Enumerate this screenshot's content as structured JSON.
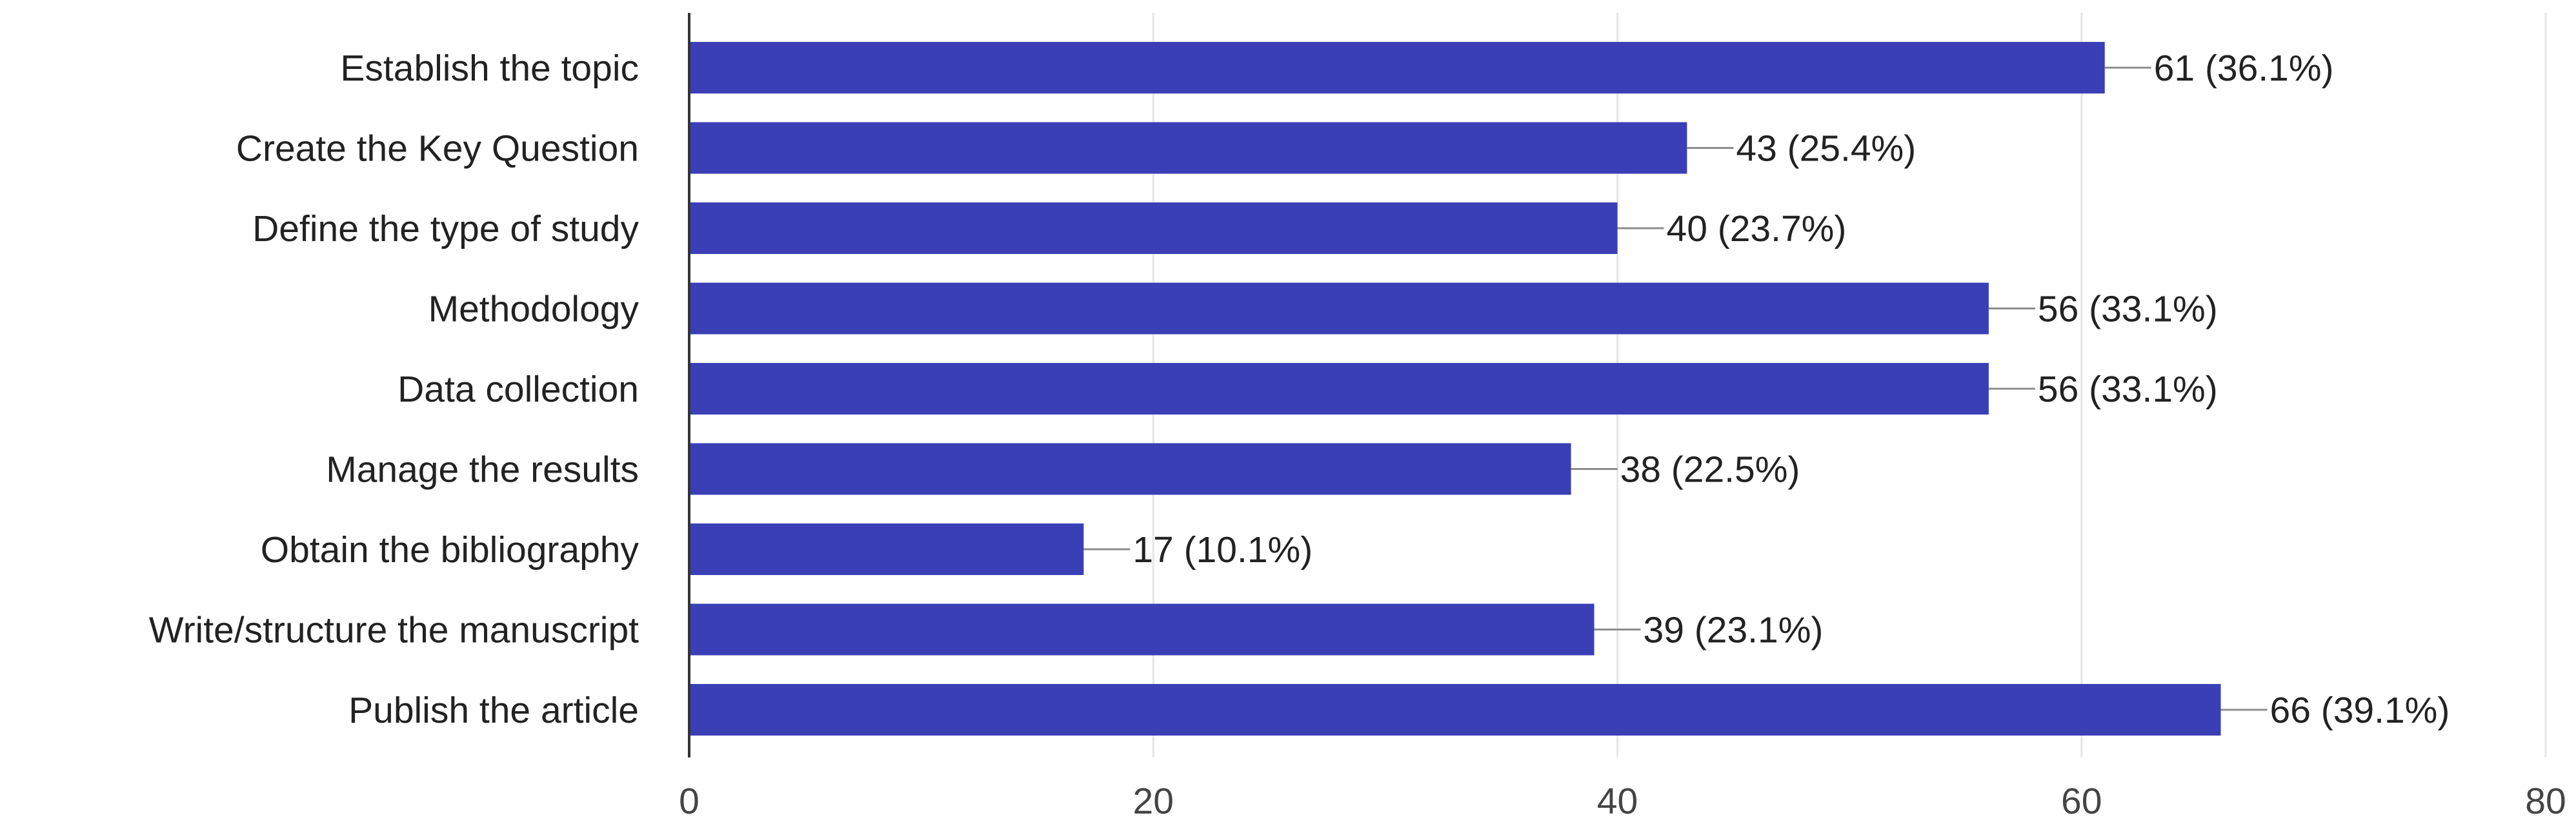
{
  "chart_data": {
    "type": "bar",
    "orientation": "horizontal",
    "categories": [
      "Establish the topic",
      "Create the Key Question",
      "Define the type of study",
      "Methodology",
      "Data collection",
      "Manage the results",
      "Obtain the bibliography",
      "Write/structure the manuscript",
      "Publish the article"
    ],
    "values": [
      61,
      43,
      40,
      56,
      56,
      38,
      17,
      39,
      66
    ],
    "data_labels": [
      "61 (36.1%)",
      "43 (25.4%)",
      "40 (23.7%)",
      "56 (33.1%)",
      "56 (33.1%)",
      "38 (22.5%)",
      "17 (10.1%)",
      "39 (23.1%)",
      "66 (39.1%)"
    ],
    "xlim": [
      0,
      80
    ],
    "xticks": [
      "0",
      "20",
      "40",
      "60",
      "80"
    ],
    "title": "",
    "xlabel": "",
    "ylabel": "",
    "grid": "vertical",
    "legend": "none",
    "bar_color": "#3a3fb6",
    "axis_color": "#333333",
    "grid_color": "#e6e6e6"
  }
}
